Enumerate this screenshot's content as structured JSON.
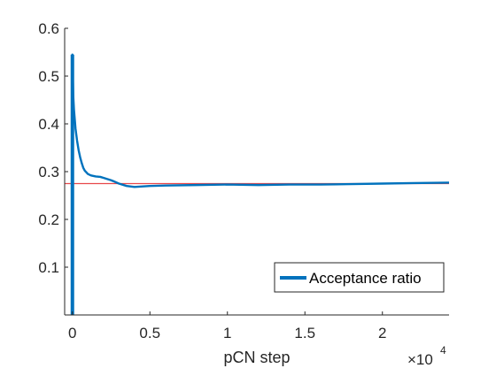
{
  "chart_data": {
    "type": "line",
    "title": "",
    "xlabel": "pCN step",
    "ylabel": "",
    "x_exponent_label": "×10",
    "x_exponent": "4",
    "xlim": [
      -500,
      24300
    ],
    "ylim": [
      0,
      0.6
    ],
    "xticks": [
      0,
      5000,
      10000,
      15000,
      20000
    ],
    "xtick_labels": [
      "0",
      "0.5",
      "1",
      "1.5",
      "2"
    ],
    "yticks": [
      0.1,
      0.2,
      0.3,
      0.4,
      0.5,
      0.6
    ],
    "ytick_labels": [
      "0.1",
      "0.2",
      "0.3",
      "0.4",
      "0.5",
      "0.6"
    ],
    "grid": false,
    "legend_position": "bottom-right",
    "series": [
      {
        "name": "Acceptance ratio",
        "color": "#0072BD",
        "x": [
          0,
          0,
          10,
          30,
          60,
          100,
          150,
          200,
          300,
          400,
          500,
          600,
          700,
          800,
          1000,
          1200,
          1500,
          1800,
          2000,
          2500,
          3000,
          3500,
          4000,
          5000,
          6000,
          8000,
          10000,
          12000,
          14000,
          16000,
          18000,
          20000,
          22000,
          24300
        ],
        "y": [
          0,
          0.545,
          0.53,
          0.49,
          0.455,
          0.43,
          0.41,
          0.39,
          0.365,
          0.345,
          0.33,
          0.318,
          0.308,
          0.302,
          0.295,
          0.292,
          0.29,
          0.289,
          0.287,
          0.282,
          0.275,
          0.27,
          0.268,
          0.27,
          0.271,
          0.272,
          0.273,
          0.272,
          0.273,
          0.273,
          0.274,
          0.275,
          0.276,
          0.277
        ]
      }
    ],
    "reference_line": {
      "y": 0.275,
      "color": "#E8474B"
    }
  }
}
